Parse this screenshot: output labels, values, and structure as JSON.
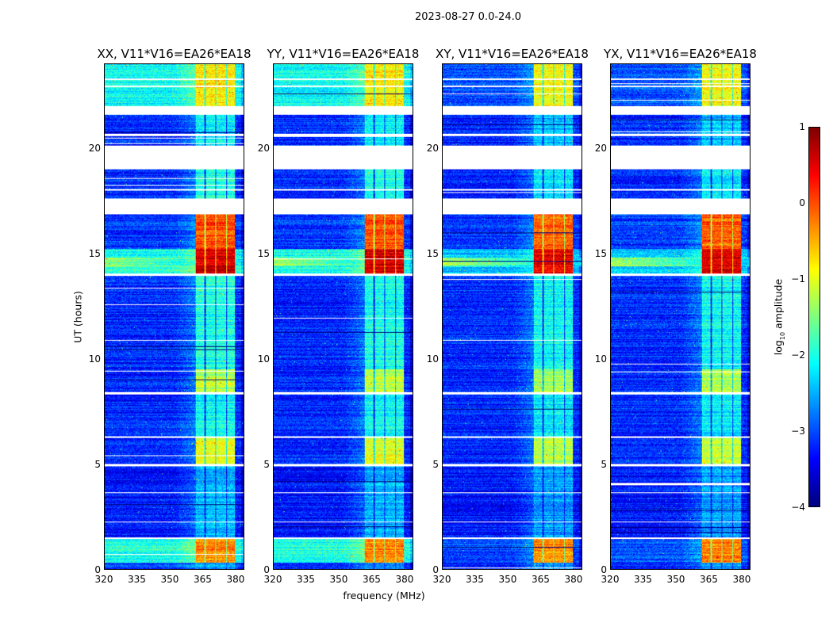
{
  "chart_data": {
    "type": "heatmap",
    "title": "2023-08-27 0.0-24.0",
    "xlabel": "frequency (MHz)",
    "ylabel": "UT (hours)",
    "xlim": [
      320,
      384
    ],
    "ylim": [
      0,
      24
    ],
    "xticks": [
      320,
      335,
      350,
      365,
      380
    ],
    "yticks": [
      0,
      5,
      10,
      15,
      20
    ],
    "panels": [
      {
        "title": "XX, V11*V16=EA26*EA18",
        "pol": "parallel"
      },
      {
        "title": "YY, V11*V16=EA26*EA18",
        "pol": "parallel"
      },
      {
        "title": "XY, V11*V16=EA26*EA18",
        "pol": "cross"
      },
      {
        "title": "YX, V11*V16=EA26*EA18",
        "pol": "cross"
      }
    ],
    "colorbar": {
      "label": "log10 amplitude",
      "label_main": "log",
      "label_sub": "10",
      "label_rest": " amplitude",
      "range": [
        -4,
        1
      ],
      "ticks": [
        1,
        0,
        -1,
        -2,
        -3,
        -4
      ],
      "tick_labels": [
        "1",
        "0",
        "−1",
        "−2",
        "−3",
        "−4"
      ],
      "colormap": "jet"
    },
    "gaps_hours": [
      [
        21.6,
        22.0
      ],
      [
        19.0,
        20.15
      ],
      [
        16.85,
        17.6
      ],
      [
        23.25,
        23.32
      ],
      [
        22.9,
        22.97
      ],
      [
        20.6,
        20.68
      ],
      [
        18.0,
        18.08
      ],
      [
        13.95,
        14.05
      ],
      [
        8.3,
        8.37
      ],
      [
        6.25,
        6.32
      ],
      [
        4.9,
        5.0
      ],
      [
        3.6,
        3.66
      ],
      [
        2.2,
        2.26
      ],
      [
        1.42,
        1.5
      ]
    ],
    "rfi_bands_mhz": [
      [
        362,
        366
      ],
      [
        366.5,
        371
      ],
      [
        371.5,
        376
      ],
      [
        376.5,
        380
      ]
    ],
    "segments": [
      {
        "t": [
          22.0,
          24.0
        ],
        "bg_par": -2.1,
        "bg_cross": -3.0,
        "rfi_par": -0.8,
        "rfi_cross": -0.9
      },
      {
        "t": [
          19.0,
          21.6
        ],
        "bg_par": -3.2,
        "bg_cross": -3.2,
        "rfi_par": -2.2,
        "rfi_cross": -2.4
      },
      {
        "t": [
          17.6,
          19.0
        ],
        "bg_par": -3.2,
        "bg_cross": -3.2,
        "rfi_par": -2.0,
        "rfi_cross": -2.2
      },
      {
        "t": [
          15.2,
          16.85
        ],
        "bg_par": -3.1,
        "bg_cross": -3.1,
        "rfi_par": 0.0,
        "rfi_cross": -0.1
      },
      {
        "t": [
          14.05,
          15.2
        ],
        "bg_par": -2.0,
        "bg_cross": -2.4,
        "rfi_par": 0.6,
        "rfi_cross": 0.5
      },
      {
        "t": [
          9.5,
          13.95
        ],
        "bg_par": -3.2,
        "bg_cross": -3.2,
        "rfi_par": -2.0,
        "rfi_cross": -2.1
      },
      {
        "t": [
          8.4,
          9.5
        ],
        "bg_par": -3.2,
        "bg_cross": -3.2,
        "rfi_par": -1.2,
        "rfi_cross": -1.3
      },
      {
        "t": [
          6.3,
          8.3
        ],
        "bg_par": -3.2,
        "bg_cross": -3.2,
        "rfi_par": -2.1,
        "rfi_cross": -2.2
      },
      {
        "t": [
          5.0,
          6.25
        ],
        "bg_par": -3.2,
        "bg_cross": -3.2,
        "rfi_par": -1.0,
        "rfi_cross": -1.2
      },
      {
        "t": [
          1.5,
          4.9
        ],
        "bg_par": -3.3,
        "bg_cross": -3.3,
        "rfi_par": -2.5,
        "rfi_cross": -2.6
      },
      {
        "t": [
          0.3,
          1.42
        ],
        "bg_par": -2.0,
        "bg_cross": -3.0,
        "rfi_par": -0.3,
        "rfi_cross": -0.3
      },
      {
        "t": [
          0.0,
          0.3
        ],
        "bg_par": -3.1,
        "bg_cross": -3.2,
        "rfi_par": -2.6,
        "rfi_cross": -2.6
      }
    ]
  }
}
